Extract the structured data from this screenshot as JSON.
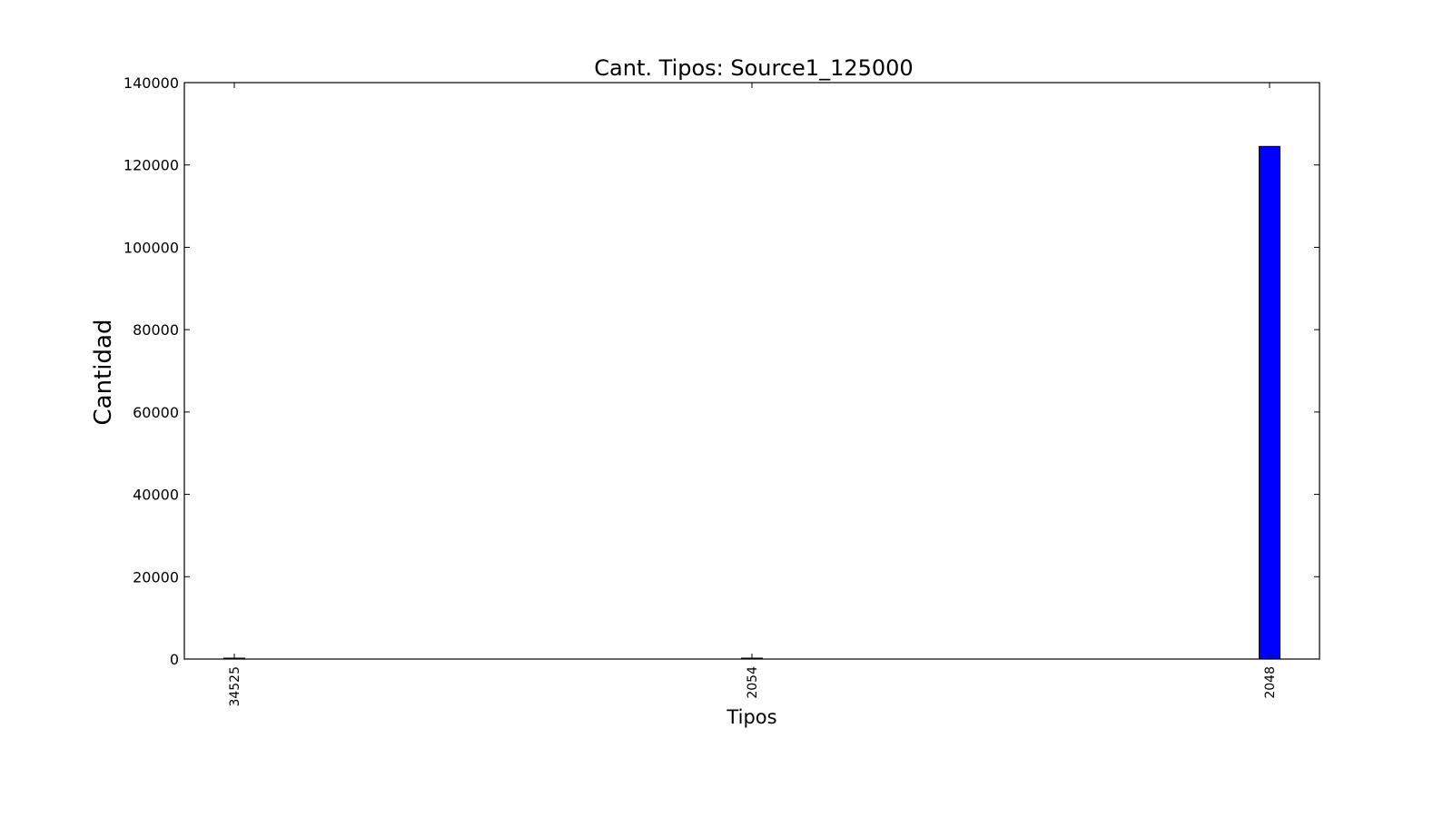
{
  "chart_data": {
    "type": "bar",
    "title": "Cant. Tipos: Source1_125000",
    "xlabel": "Tipos",
    "ylabel": "Cantidad",
    "categories": [
      "34525",
      "2054",
      "2048"
    ],
    "values": [
      50,
      50,
      124500
    ],
    "ylim": [
      0,
      140000
    ],
    "yticks": [
      "0",
      "20000",
      "40000",
      "60000",
      "80000",
      "100000",
      "120000",
      "140000"
    ],
    "bar_color": "#0000ff",
    "grid": false,
    "legend": "none"
  }
}
